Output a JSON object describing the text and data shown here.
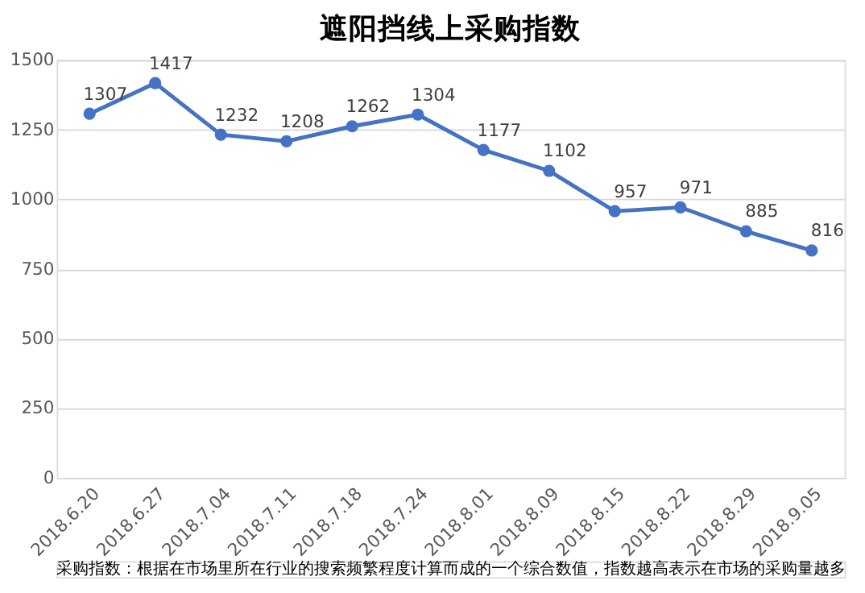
{
  "chart_data": {
    "type": "line",
    "title": "遮阳挡线上采购指数",
    "categories": [
      "2018.6.20",
      "2018.6.27",
      "2018.7.04",
      "2018.7.11",
      "2018.7.18",
      "2018.7.24",
      "2018.8.01",
      "2018.8.09",
      "2018.8.15",
      "2018.8.22",
      "2018.8.29",
      "2018.9.05"
    ],
    "series": [
      {
        "color": "#4472c4",
        "values": [
          1307,
          1417,
          1232,
          1208,
          1262,
          1304,
          1177,
          1102,
          957,
          971,
          885,
          816
        ]
      }
    ],
    "ylim": [
      0,
      1500
    ],
    "yticks": [
      0,
      250,
      500,
      750,
      1000,
      1250,
      1500
    ],
    "grid": "y",
    "marker": "circle",
    "line_style": "solid",
    "data_labels": true,
    "annotations": [
      "采购指数：根据在市场里所在行业的搜索频繁程度计算而成的一个综合数值，指数越高表示在市场的采购量越多"
    ]
  }
}
